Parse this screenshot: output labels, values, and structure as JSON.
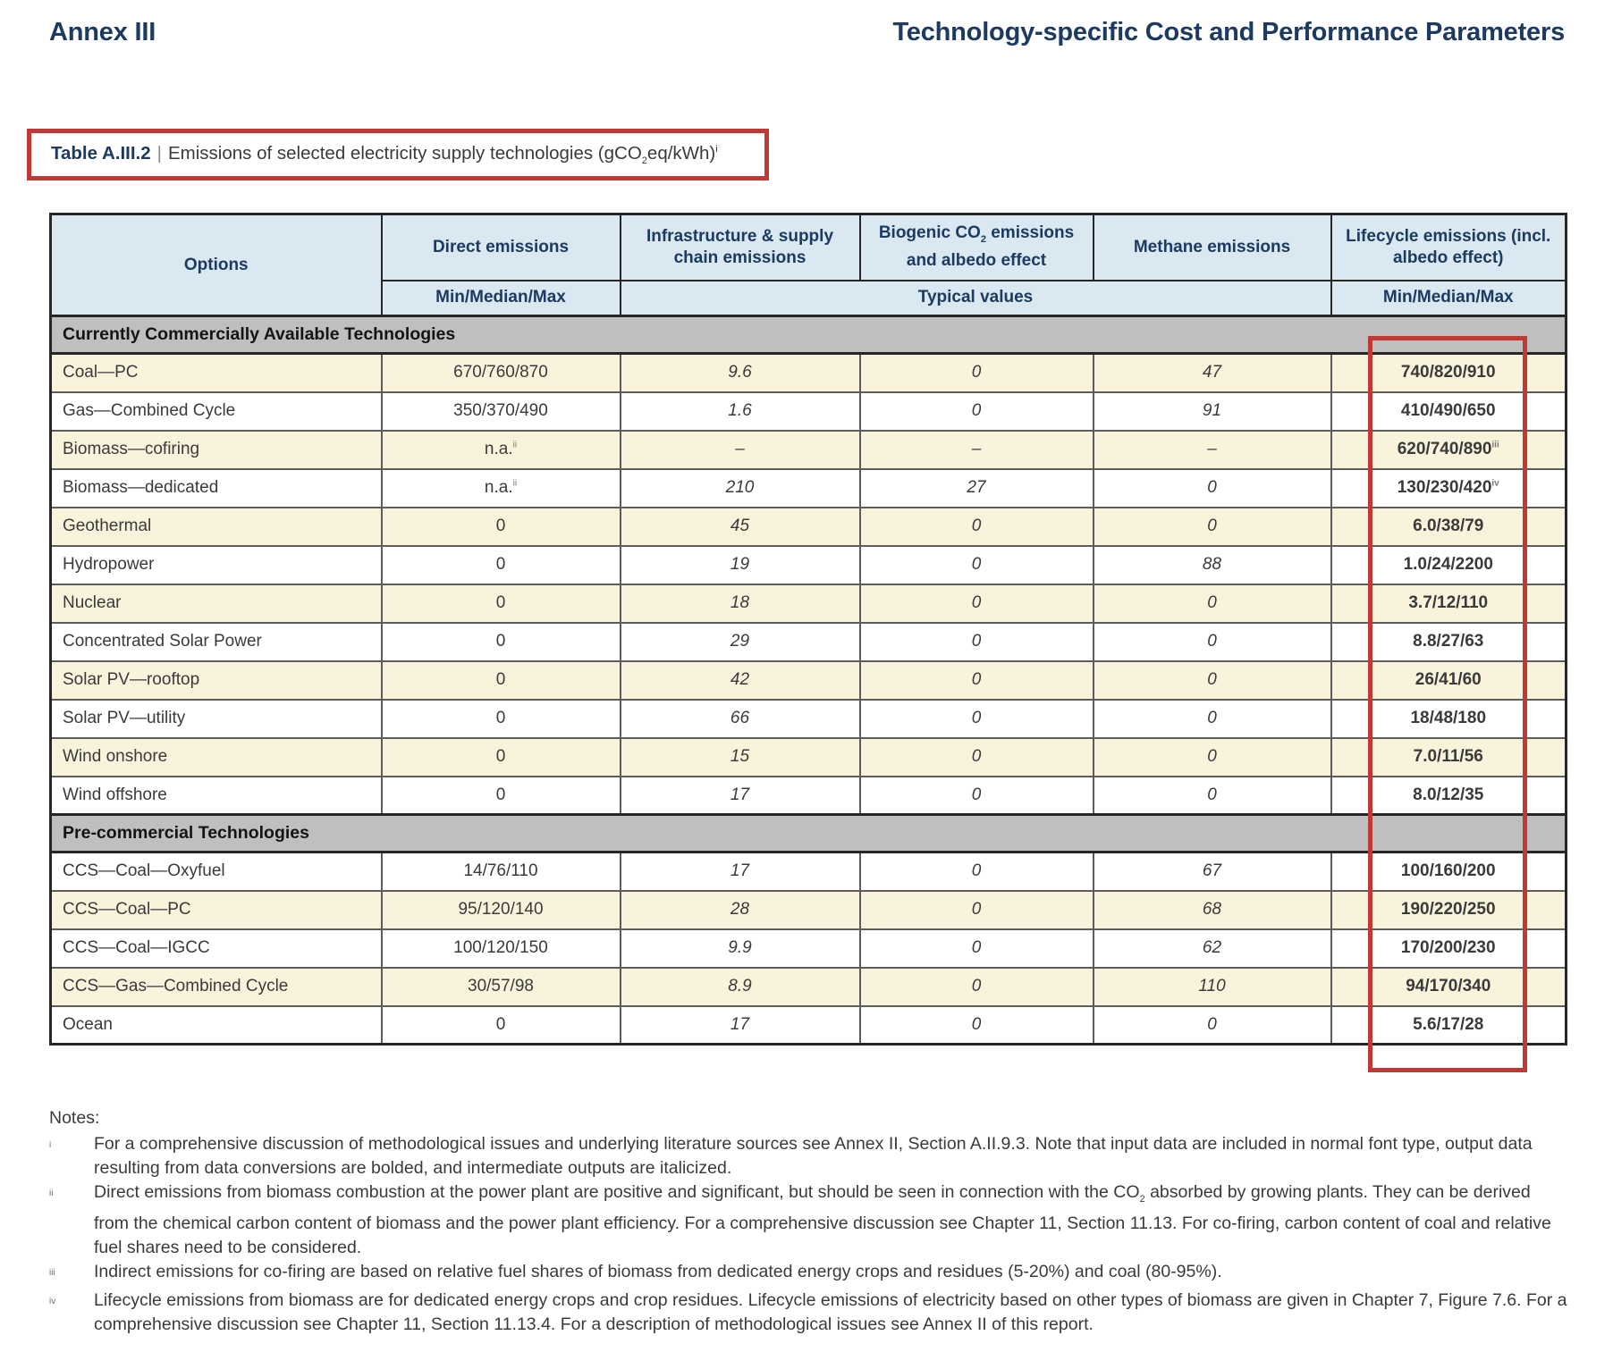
{
  "colors": {
    "annotation_red": "#bf3a34",
    "heading_navy": "#1d3a60",
    "table_header_blue": "#d9e8f1",
    "section_band_gray": "#bfbfbf",
    "row_cream": "#faf3dc"
  },
  "page_header": {
    "left": "Annex III",
    "right": "Technology-specific Cost and Performance Parameters"
  },
  "caption": {
    "label": "Table A.III.2",
    "separator": "|",
    "text": "Emissions of selected electricity supply technologies (gCO~2~eq/kWh)^i^"
  },
  "table": {
    "header": {
      "options": "Options",
      "direct": "Direct emissions",
      "infrastructure": "Infrastructure & supply chain emissions",
      "biogenic": "Biogenic CO~2~ emissions and albedo effect",
      "methane": "Methane emissions",
      "lifecycle": "Lifecycle emissions (incl. albedo effect)",
      "direct_sub": "Min/Median/Max",
      "typical_sub": "Typical values",
      "lifecycle_sub": "Min/Median/Max"
    },
    "sections": [
      {
        "title": "Currently Commercially Available Technologies",
        "rows": [
          {
            "option": "Coal—PC",
            "direct": "670/760/870",
            "infrastructure": "9.6",
            "biogenic": "0",
            "methane": "47",
            "lifecycle": "740/820/910"
          },
          {
            "option": "Gas—Combined Cycle",
            "direct": "350/370/490",
            "infrastructure": "1.6",
            "biogenic": "0",
            "methane": "91",
            "lifecycle": "410/490/650"
          },
          {
            "option": "Biomass—cofiring",
            "direct": "n.a.^ii^",
            "infrastructure": "–",
            "biogenic": "–",
            "methane": "–",
            "lifecycle": "620/740/890^iii^"
          },
          {
            "option": "Biomass—dedicated",
            "direct": "n.a.^ii^",
            "infrastructure": "210",
            "biogenic": "27",
            "methane": "0",
            "lifecycle": "130/230/420^iv^"
          },
          {
            "option": "Geothermal",
            "direct": "0",
            "infrastructure": "45",
            "biogenic": "0",
            "methane": "0",
            "lifecycle": "6.0/38/79"
          },
          {
            "option": "Hydropower",
            "direct": "0",
            "infrastructure": "19",
            "biogenic": "0",
            "methane": "88",
            "lifecycle": "1.0/24/2200"
          },
          {
            "option": "Nuclear",
            "direct": "0",
            "infrastructure": "18",
            "biogenic": "0",
            "methane": "0",
            "lifecycle": "3.7/12/110"
          },
          {
            "option": "Concentrated Solar Power",
            "direct": "0",
            "infrastructure": "29",
            "biogenic": "0",
            "methane": "0",
            "lifecycle": "8.8/27/63"
          },
          {
            "option": "Solar PV—rooftop",
            "direct": "0",
            "infrastructure": "42",
            "biogenic": "0",
            "methane": "0",
            "lifecycle": "26/41/60"
          },
          {
            "option": "Solar PV—utility",
            "direct": "0",
            "infrastructure": "66",
            "biogenic": "0",
            "methane": "0",
            "lifecycle": "18/48/180"
          },
          {
            "option": "Wind onshore",
            "direct": "0",
            "infrastructure": "15",
            "biogenic": "0",
            "methane": "0",
            "lifecycle": "7.0/11/56"
          },
          {
            "option": "Wind offshore",
            "direct": "0",
            "infrastructure": "17",
            "biogenic": "0",
            "methane": "0",
            "lifecycle": "8.0/12/35"
          }
        ]
      },
      {
        "title": "Pre-commercial Technologies",
        "rows": [
          {
            "option": "CCS—Coal—Oxyfuel",
            "direct": "14/76/110",
            "infrastructure": "17",
            "biogenic": "0",
            "methane": "67",
            "lifecycle": "100/160/200"
          },
          {
            "option": "CCS—Coal—PC",
            "direct": "95/120/140",
            "infrastructure": "28",
            "biogenic": "0",
            "methane": "68",
            "lifecycle": "190/220/250"
          },
          {
            "option": "CCS—Coal—IGCC",
            "direct": "100/120/150",
            "infrastructure": "9.9",
            "biogenic": "0",
            "methane": "62",
            "lifecycle": "170/200/230"
          },
          {
            "option": "CCS—Gas—Combined Cycle",
            "direct": "30/57/98",
            "infrastructure": "8.9",
            "biogenic": "0",
            "methane": "110",
            "lifecycle": "94/170/340"
          },
          {
            "option": "Ocean",
            "direct": "0",
            "infrastructure": "17",
            "biogenic": "0",
            "methane": "0",
            "lifecycle": "5.6/17/28"
          }
        ]
      }
    ]
  },
  "notes": {
    "title": "Notes:",
    "items": [
      {
        "marker": "i",
        "text": "For a comprehensive discussion of methodological issues and underlying literature sources see Annex II, Section A.II.9.3. Note that input data are included in normal font type, output data resulting from data conversions are bolded, and intermediate outputs are italicized."
      },
      {
        "marker": "ii",
        "text": "Direct emissions from biomass combustion at the power plant are positive and significant, but should be seen in connection with the CO~2~ absorbed by growing plants. They can be derived from the chemical carbon content of biomass and the power plant efficiency. For a comprehensive discussion see Chapter 11, Section 11.13. For co-firing, carbon content of coal and relative fuel shares need to be considered."
      },
      {
        "marker": "iii",
        "text": "Indirect emissions for co-firing are based on relative fuel shares of biomass from dedicated energy crops and residues (5-20%) and coal (80-95%)."
      },
      {
        "marker": "iv",
        "text": "Lifecycle emissions from biomass are for dedicated energy crops and crop residues. Lifecycle emissions of electricity based on other types of biomass are given in Chapter 7, Figure 7.6. For a comprehensive discussion see Chapter 11, Section 11.13.4. For a description of methodological issues see Annex II of this report."
      }
    ]
  }
}
